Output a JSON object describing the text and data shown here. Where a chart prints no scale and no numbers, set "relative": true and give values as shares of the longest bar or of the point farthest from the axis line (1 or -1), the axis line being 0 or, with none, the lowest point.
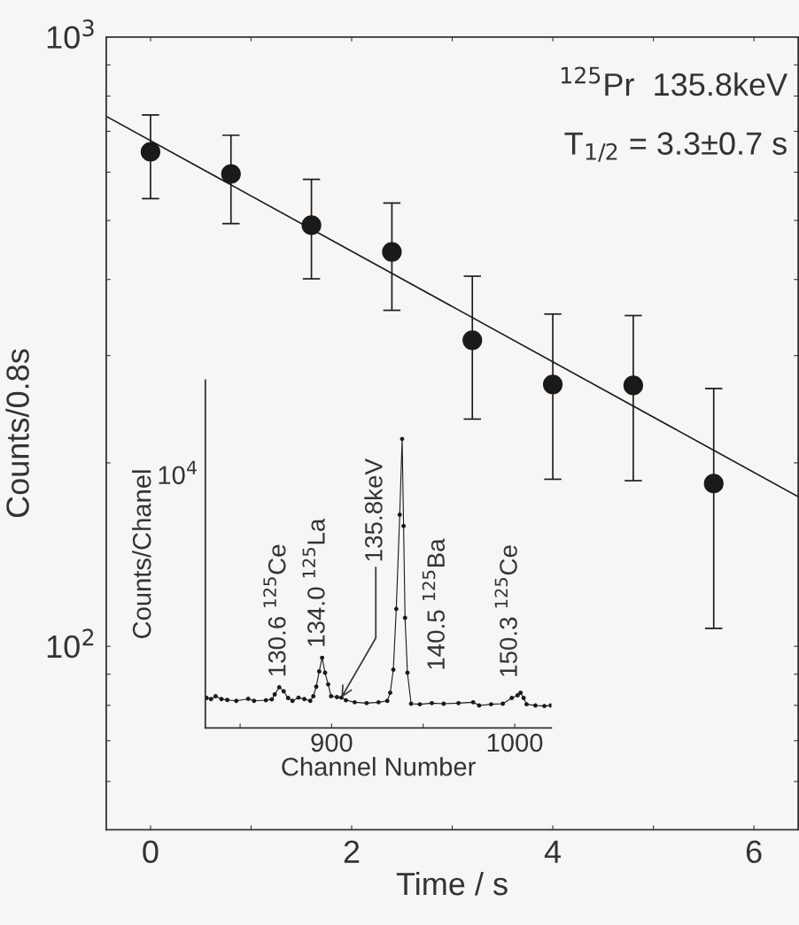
{
  "chart_data": [
    {
      "type": "scatter",
      "xlabel": "Time / s",
      "ylabel": "Counts/0.8s",
      "log": "y",
      "grid": false,
      "legend": false,
      "xlim": [
        -0.44,
        6.44
      ],
      "ylim": [
        50,
        1000
      ],
      "xticks": [
        0,
        {
          "value": 1,
          "label": null
        },
        2,
        {
          "value": 3,
          "label": null
        },
        4,
        {
          "value": 5,
          "label": null
        },
        6
      ],
      "yticks": [
        {
          "value": 60,
          "label": null
        },
        {
          "value": 70,
          "label": null
        },
        {
          "value": 80,
          "label": null
        },
        {
          "value": 90,
          "label": null
        },
        {
          "value": 100,
          "label": "10$^{2}$"
        },
        {
          "value": 200,
          "label": null
        },
        {
          "value": 300,
          "label": null
        },
        {
          "value": 400,
          "label": null
        },
        {
          "value": 500,
          "label": null
        },
        {
          "value": 600,
          "label": null
        },
        {
          "value": 700,
          "label": null
        },
        {
          "value": 800,
          "label": null
        },
        {
          "value": 900,
          "label": null
        },
        {
          "value": 1000,
          "label": "10$^{3}$"
        }
      ],
      "annotations": [
        "$^{125}$Pr  135.8keV",
        "T$_{1/2}$ = 3.3±0.7 s"
      ],
      "series": [
        {
          "color": "#1a1a1a",
          "marker": "circle",
          "x": [
            0,
            0.8,
            1.6,
            2.4,
            3.2,
            4.0,
            4.8,
            5.6
          ],
          "values": [
            648,
            596,
            491,
            444,
            318,
            269,
            268,
            185
          ],
          "errors": [
            [
              543,
              745
            ],
            [
              494,
              690
            ],
            [
              401,
              584
            ],
            [
              356,
              534
            ],
            [
              236,
              405
            ],
            [
              188,
              351
            ],
            [
              187,
              349
            ],
            [
              107,
              265
            ]
          ]
        },
        {
          "type": "line",
          "color": "#1a1a1a",
          "marker": "none",
          "line_style": "solid",
          "x": [
            -0.44,
            6.44
          ],
          "values": [
            741,
            176
          ]
        }
      ]
    },
    {
      "type": "line",
      "xlabel": "Channel Number",
      "ylabel": "Counts/Chanel",
      "grid": false,
      "legend": false,
      "marker": "circle",
      "line_style": "solid",
      "xlim": [
        831,
        1020
      ],
      "relative": true,
      "tick_labels": "x",
      "xticks": [
        {
          "value": 850,
          "label": null
        },
        900,
        {
          "value": 950,
          "label": null
        },
        1000
      ],
      "annotations": [
        {
          "text": "130.6 $^{125}$Ce",
          "x": 871.4,
          "y": 0.141
        },
        {
          "text": "134.0 $^{125}$La",
          "x": 894.8,
          "y": 0.243
        },
        {
          "text": "135.8keV",
          "x": 905.3,
          "y": 0.105
        },
        {
          "text": "140.5 $^{125}$Ba",
          "x": 940.1,
          "y": 0.381
        },
        {
          "text": "150.3 $^{125}$Ce",
          "x": 1003.2,
          "y": 0.122
        },
        "10$^{4}$"
      ],
      "series": [
        {
          "color": "#1a1a1a",
          "x": [
            831.7,
            834.1,
            836.6,
            839.8,
            843.0,
            847.9,
            854.4,
            857.6,
            864.1,
            867.3,
            868.9,
            871.4,
            873.8,
            876.2,
            878.6,
            881.9,
            885.1,
            888.3,
            890.0,
            891.6,
            893.2,
            894.8,
            896.4,
            898.1,
            899.7,
            902.9,
            905.3,
            907.8,
            912.6,
            919.1,
            925.6,
            930.4,
            932.0,
            933.7,
            935.3,
            937.2,
            938.5,
            939.3,
            940.1,
            941.4,
            943.4,
            948.2,
            954.7,
            961.2,
            969.3,
            977.3,
            980.6,
            987.1,
            993.5,
            998.4,
            1001.6,
            1003.2,
            1004.9,
            1006.5,
            1011.3,
            1016.2,
            1019.7
          ],
          "values": [
            0.104,
            0.1,
            0.11,
            0.1,
            0.097,
            0.094,
            0.101,
            0.094,
            0.096,
            0.099,
            0.116,
            0.141,
            0.127,
            0.104,
            0.094,
            0.105,
            0.1,
            0.094,
            0.11,
            0.143,
            0.196,
            0.243,
            0.191,
            0.151,
            0.11,
            0.107,
            0.105,
            0.096,
            0.089,
            0.086,
            0.089,
            0.094,
            0.122,
            0.202,
            0.412,
            0.738,
            1,
            0.699,
            0.381,
            0.191,
            0.084,
            0.082,
            0.086,
            0.084,
            0.086,
            0.089,
            0.078,
            0.082,
            0.084,
            0.104,
            0.113,
            0.122,
            0.104,
            0.082,
            0.078,
            0.076,
            0.078
          ]
        }
      ]
    }
  ]
}
